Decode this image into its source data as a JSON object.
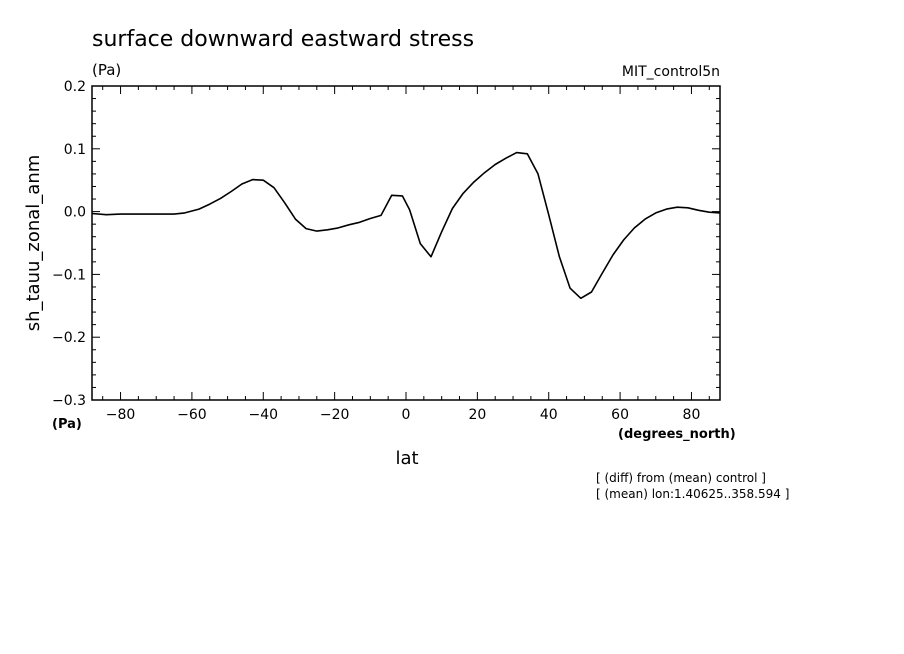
{
  "chart_data": {
    "type": "line",
    "title": "surface downward eastward stress",
    "units": "(Pa)",
    "dataset_label": "MIT_control5n",
    "ylabel": "sh_tauu_zonal_anm",
    "ylabel_units": "(Pa)",
    "xlabel": "lat",
    "xlabel_units": "(degrees_north)",
    "xlim": [
      -88,
      88
    ],
    "ylim": [
      -0.3,
      0.2
    ],
    "x_ticks": [
      -80,
      -60,
      -40,
      -20,
      0,
      20,
      40,
      60,
      80
    ],
    "x_tick_labels": [
      "−80",
      "−60",
      "−40",
      "−20",
      "0",
      "20",
      "40",
      "60",
      "80"
    ],
    "y_ticks": [
      -0.3,
      -0.2,
      -0.1,
      0.0,
      0.1,
      0.2
    ],
    "y_tick_labels": [
      "−0.3",
      "−0.2",
      "−0.1",
      "0.0",
      "0.1",
      "0.2"
    ],
    "grid": false,
    "line_color": "#000000",
    "notes": [
      "[ (diff) from (mean) control ]",
      "[ (mean) lon:1.40625..358.594 ]"
    ],
    "series": [
      {
        "x": [
          -88,
          -84,
          -80,
          -75,
          -70,
          -65,
          -62,
          -58,
          -55,
          -52,
          -49,
          -46,
          -43,
          -40,
          -37,
          -34,
          -31,
          -28,
          -25,
          -22,
          -19,
          -16,
          -13,
          -10,
          -7,
          -4,
          -1,
          1,
          4,
          7,
          10,
          13,
          16,
          19,
          22,
          25,
          28,
          31,
          34,
          37,
          40,
          43,
          46,
          49,
          52,
          55,
          58,
          61,
          64,
          67,
          70,
          73,
          76,
          79,
          82,
          85,
          88
        ],
        "y": [
          -0.003,
          -0.005,
          -0.004,
          -0.004,
          -0.004,
          -0.004,
          -0.002,
          0.004,
          0.012,
          0.021,
          0.032,
          0.044,
          0.051,
          0.05,
          0.038,
          0.014,
          -0.012,
          -0.027,
          -0.031,
          -0.029,
          -0.026,
          -0.021,
          -0.017,
          -0.011,
          -0.006,
          0.026,
          0.025,
          0.003,
          -0.051,
          -0.072,
          -0.032,
          0.005,
          0.029,
          0.047,
          0.062,
          0.075,
          0.085,
          0.094,
          0.092,
          0.06,
          -0.005,
          -0.072,
          -0.122,
          -0.138,
          -0.128,
          -0.098,
          -0.069,
          -0.045,
          -0.026,
          -0.012,
          -0.002,
          0.004,
          0.007,
          0.006,
          0.002,
          -0.001,
          -0.002
        ]
      }
    ]
  }
}
